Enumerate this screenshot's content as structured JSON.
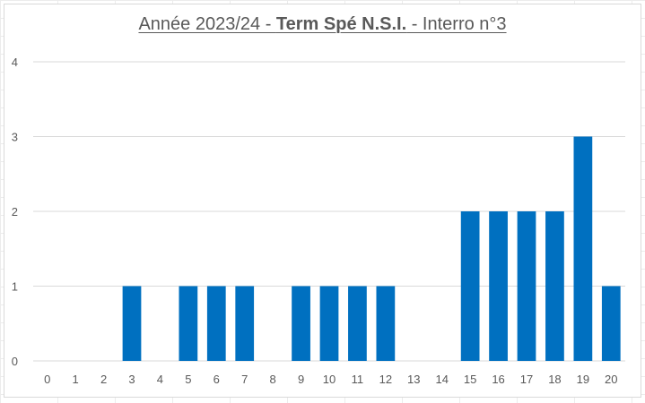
{
  "chart_data": {
    "type": "bar",
    "title": {
      "part1": "Année 2023/24 - ",
      "part2": "Term Spé N.S.I.",
      "part3": " - Interro n°3"
    },
    "xlabel": "",
    "ylabel": "",
    "categories": [
      "0",
      "1",
      "2",
      "3",
      "4",
      "5",
      "6",
      "7",
      "8",
      "9",
      "10",
      "11",
      "12",
      "13",
      "14",
      "15",
      "16",
      "17",
      "18",
      "19",
      "20"
    ],
    "values": [
      0,
      0,
      0,
      1,
      0,
      1,
      1,
      1,
      0,
      1,
      1,
      1,
      1,
      0,
      0,
      2,
      2,
      2,
      2,
      3,
      1
    ],
    "ylim": [
      0,
      4
    ],
    "yticks": [
      "0",
      "1",
      "2",
      "3",
      "4"
    ],
    "grid": true,
    "bar_color": "#0070C0",
    "gridline_color": "#D9D9D9"
  }
}
